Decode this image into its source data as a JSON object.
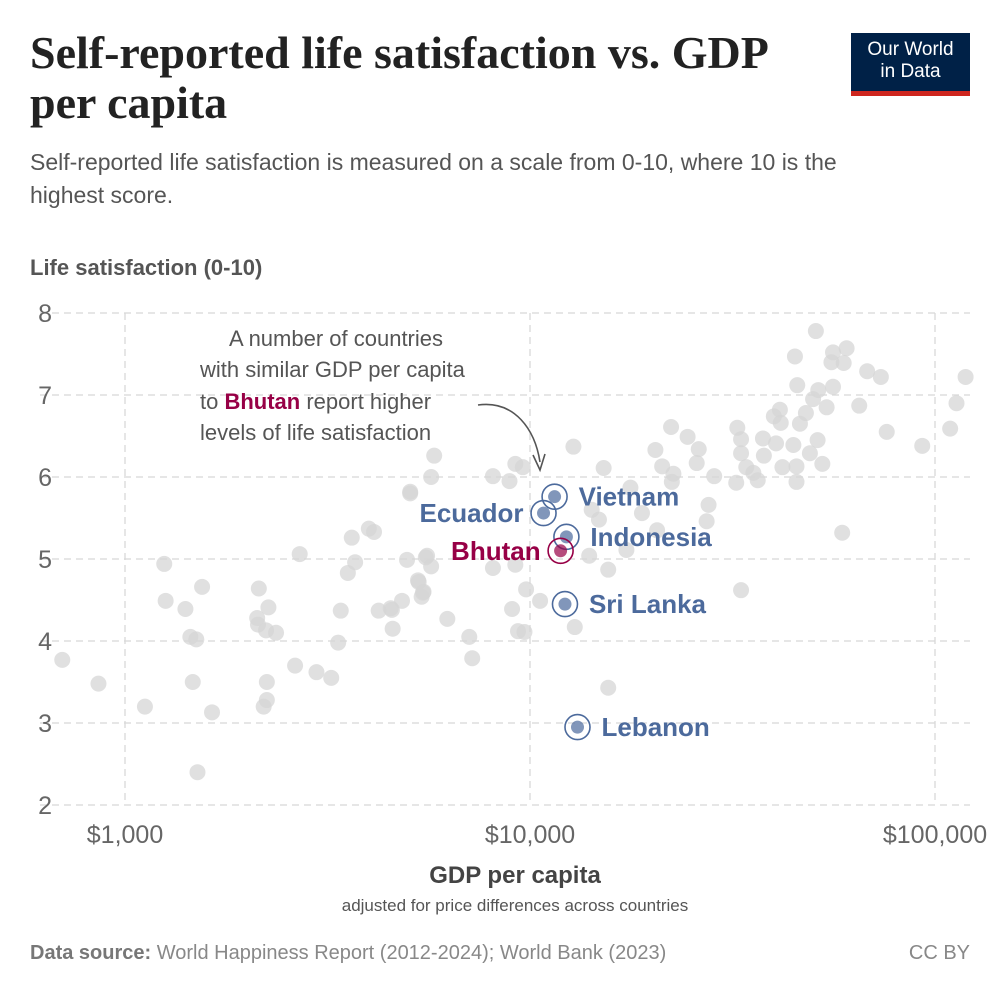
{
  "header": {
    "title": "Self-reported life satisfaction vs. GDP per capita",
    "subtitle": "Self-reported life satisfaction is measured on a scale from 0-10, where 10 is the highest score.",
    "logo_line1": "Our World",
    "logo_line2": "in Data"
  },
  "footer": {
    "source_label": "Data source:",
    "source_text": " World Happiness Report (2012-2024); World Bank (2023)",
    "license": "CC BY"
  },
  "colors": {
    "highlight": "#4c6a9c",
    "bhutan": "#970046",
    "background_points": "#d6d6d6",
    "logo_bg": "#002147",
    "logo_accent": "#ce261e"
  },
  "chart_data": {
    "type": "scatter",
    "title": "Self-reported life satisfaction vs. GDP per capita",
    "ylabel": "Life satisfaction (0-10)",
    "xlabel": "GDP per capita",
    "xlabel_sub": "adjusted for price differences across countries",
    "x_scale": "log",
    "xlim": [
      700,
      120000
    ],
    "ylim": [
      2,
      8
    ],
    "x_ticks": [
      {
        "value": 1000,
        "label": "$1,000"
      },
      {
        "value": 10000,
        "label": "$10,000"
      },
      {
        "value": 100000,
        "label": "$100,000"
      }
    ],
    "y_ticks": [
      2,
      3,
      4,
      5,
      6,
      7,
      8
    ],
    "grid": true,
    "annotation": {
      "line1": "A number of countries",
      "line2": "with similar GDP per capita",
      "line3_pre": "to ",
      "line3_highlight": "Bhutan",
      "line3_post": " report higher",
      "line4": "levels of life satisfaction"
    },
    "highlighted": [
      {
        "name": "Vietnam",
        "gdp": 11500,
        "ls": 5.76
      },
      {
        "name": "Ecuador",
        "gdp": 10800,
        "ls": 5.56
      },
      {
        "name": "Indonesia",
        "gdp": 12300,
        "ls": 5.27
      },
      {
        "name": "Bhutan",
        "gdp": 11900,
        "ls": 5.1
      },
      {
        "name": "Sri Lanka",
        "gdp": 12200,
        "ls": 4.45
      },
      {
        "name": "Lebanon",
        "gdp": 13100,
        "ls": 2.95
      }
    ],
    "points": [
      [
        700,
        3.77
      ],
      [
        860,
        3.48
      ],
      [
        1120,
        3.2
      ],
      [
        1250,
        4.94
      ],
      [
        1260,
        4.49
      ],
      [
        1410,
        4.39
      ],
      [
        1550,
        4.66
      ],
      [
        1450,
        4.05
      ],
      [
        1500,
        4.02
      ],
      [
        1470,
        3.5
      ],
      [
        1640,
        3.13
      ],
      [
        1510,
        2.4
      ],
      [
        2140,
        4.64
      ],
      [
        2260,
        4.41
      ],
      [
        2120,
        4.28
      ],
      [
        2130,
        4.2
      ],
      [
        2230,
        4.13
      ],
      [
        2360,
        4.1
      ],
      [
        2240,
        3.5
      ],
      [
        2240,
        3.28
      ],
      [
        2200,
        3.2
      ],
      [
        2630,
        3.7
      ],
      [
        2700,
        5.06
      ],
      [
        2970,
        3.62
      ],
      [
        3230,
        3.55
      ],
      [
        3360,
        3.98
      ],
      [
        3410,
        4.37
      ],
      [
        3630,
        5.26
      ],
      [
        3700,
        4.96
      ],
      [
        3550,
        4.83
      ],
      [
        4000,
        5.37
      ],
      [
        4120,
        5.33
      ],
      [
        4230,
        4.37
      ],
      [
        4530,
        4.4
      ],
      [
        4580,
        4.15
      ],
      [
        4830,
        4.49
      ],
      [
        4970,
        4.99
      ],
      [
        5060,
        5.8
      ],
      [
        5570,
        5.04
      ],
      [
        5700,
        4.91
      ],
      [
        5310,
        4.72
      ],
      [
        5460,
        4.6
      ],
      [
        5400,
        4.54
      ],
      [
        6250,
        4.27
      ],
      [
        7080,
        4.05
      ],
      [
        7200,
        3.79
      ],
      [
        8100,
        4.89
      ],
      [
        9030,
        4.39
      ],
      [
        9340,
        4.12
      ],
      [
        50800,
        7.78
      ],
      [
        45100,
        7.47
      ],
      [
        56000,
        7.52
      ],
      [
        60500,
        7.57
      ],
      [
        55500,
        7.4
      ],
      [
        59500,
        7.39
      ],
      [
        68000,
        7.29
      ],
      [
        73500,
        7.22
      ],
      [
        119000,
        7.22
      ],
      [
        113000,
        6.9
      ],
      [
        109000,
        6.59
      ],
      [
        93000,
        6.38
      ],
      [
        76000,
        6.55
      ],
      [
        65000,
        6.87
      ],
      [
        45700,
        7.12
      ],
      [
        51500,
        7.06
      ],
      [
        56000,
        7.1
      ],
      [
        50000,
        6.95
      ],
      [
        54000,
        6.85
      ],
      [
        41400,
        6.82
      ],
      [
        40000,
        6.74
      ],
      [
        48000,
        6.78
      ],
      [
        46400,
        6.65
      ],
      [
        41600,
        6.66
      ],
      [
        32500,
        6.6
      ],
      [
        33200,
        6.46
      ],
      [
        37600,
        6.47
      ],
      [
        40500,
        6.41
      ],
      [
        44700,
        6.39
      ],
      [
        51300,
        6.45
      ],
      [
        49100,
        6.29
      ],
      [
        33200,
        6.29
      ],
      [
        34200,
        6.12
      ],
      [
        37800,
        6.26
      ],
      [
        42000,
        6.12
      ],
      [
        45500,
        6.13
      ],
      [
        52700,
        6.16
      ],
      [
        45500,
        5.94
      ],
      [
        32300,
        5.93
      ],
      [
        35600,
        6.05
      ],
      [
        36500,
        5.96
      ],
      [
        28500,
        6.01
      ],
      [
        22300,
        6.61
      ],
      [
        24500,
        6.49
      ],
      [
        26100,
        6.34
      ],
      [
        20400,
        6.33
      ],
      [
        25800,
        6.17
      ],
      [
        21200,
        6.13
      ],
      [
        22600,
        6.04
      ],
      [
        22400,
        5.94
      ],
      [
        27600,
        5.66
      ],
      [
        27300,
        5.46
      ],
      [
        15200,
        6.11
      ],
      [
        12800,
        6.37
      ],
      [
        59000,
        5.32
      ],
      [
        33200,
        4.62
      ],
      [
        15600,
        3.43
      ],
      [
        12900,
        4.17
      ],
      [
        15600,
        4.87
      ],
      [
        14800,
        5.48
      ],
      [
        17700,
        5.87
      ],
      [
        18900,
        5.56
      ],
      [
        20600,
        5.35
      ],
      [
        17300,
        5.11
      ],
      [
        14000,
        5.04
      ],
      [
        14200,
        5.6
      ],
      [
        5800,
        6.26
      ],
      [
        5700,
        6.0
      ],
      [
        5060,
        5.82
      ],
      [
        8100,
        6.01
      ],
      [
        8900,
        5.95
      ],
      [
        9200,
        6.16
      ],
      [
        9600,
        6.12
      ],
      [
        5530,
        5.02
      ],
      [
        9200,
        4.93
      ],
      [
        5290,
        4.74
      ],
      [
        5440,
        4.59
      ],
      [
        4560,
        4.38
      ],
      [
        9690,
        4.11
      ],
      [
        9780,
        4.63
      ],
      [
        10590,
        4.49
      ]
    ]
  }
}
